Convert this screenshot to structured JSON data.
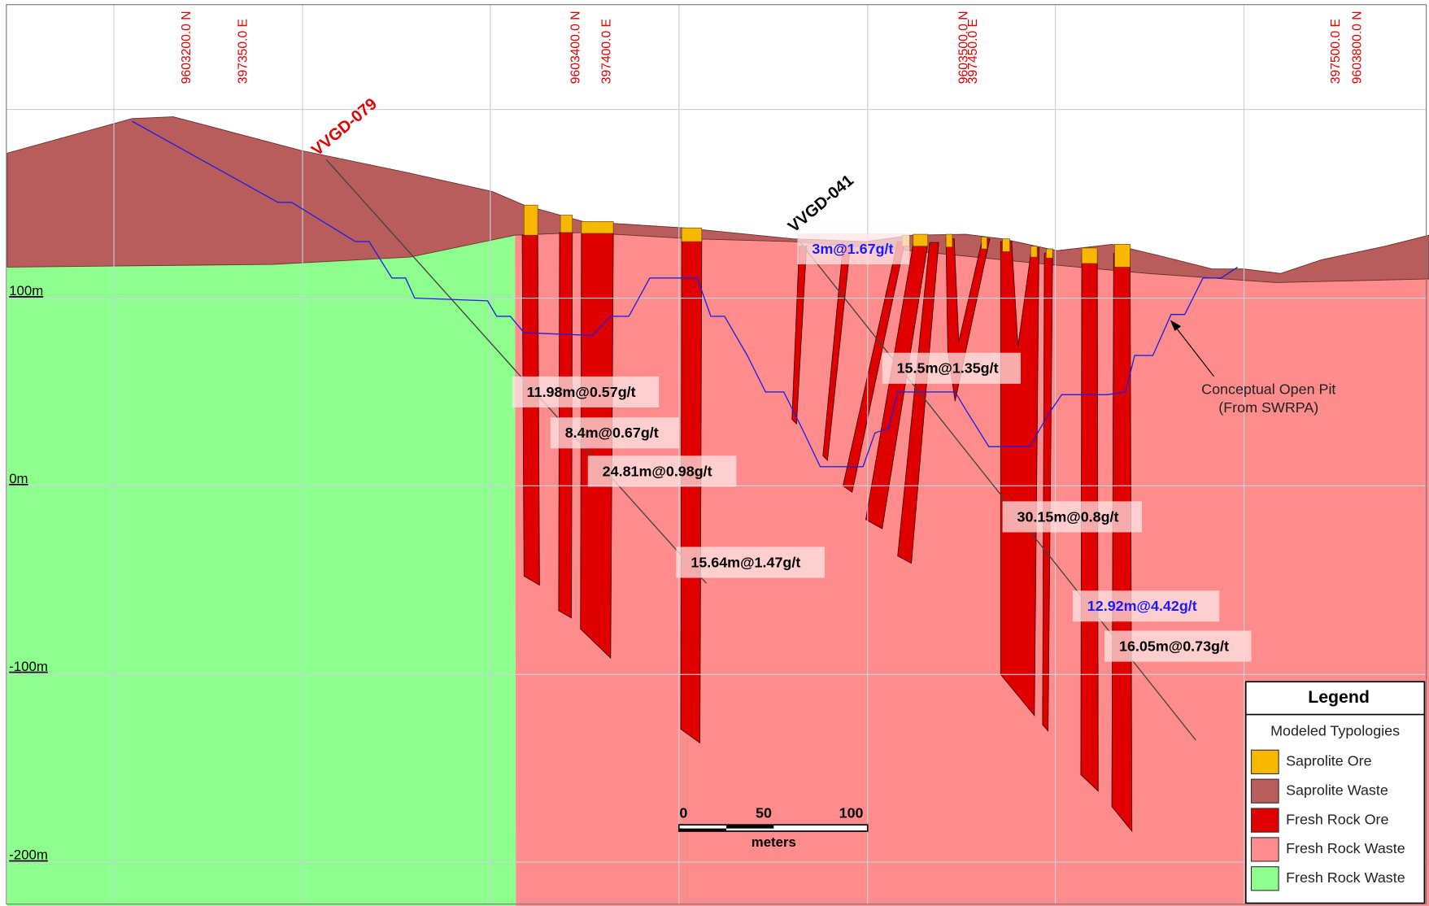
{
  "section_labels": [
    "9603200.0 N",
    "397350.0 E",
    "9603400.0 N",
    "397400.0 E",
    "9603500.0 N",
    "397450.0 E",
    "397500.0 E",
    "9603800.0 N"
  ],
  "drill_holes": [
    {
      "name": "VVGD-079",
      "color": "#e00000"
    },
    {
      "name": "VVGD-041",
      "color": "#000000"
    }
  ],
  "intercepts": [
    {
      "text": "11.98m@0.57g/t",
      "color": "#000000"
    },
    {
      "text": "8.4m@0.67g/t",
      "color": "#000000"
    },
    {
      "text": "24.81m@0.98g/t",
      "color": "#000000"
    },
    {
      "text": "15.64m@1.47g/t",
      "color": "#000000"
    },
    {
      "text": "3m@1.67g/t",
      "color": "#1a1aff"
    },
    {
      "text": "15.5m@1.35g/t",
      "color": "#000000"
    },
    {
      "text": "30.15m@0.8g/t",
      "color": "#000000"
    },
    {
      "text": "12.92m@4.42g/t",
      "color": "#1a1aff"
    },
    {
      "text": "16.05m@0.73g/t",
      "color": "#000000"
    }
  ],
  "elevation_labels": [
    "100m",
    "0m",
    "-100m",
    "-200m"
  ],
  "scale_bar": {
    "ticks": [
      "0",
      "50",
      "100"
    ],
    "unit": "meters"
  },
  "annotation": {
    "lines": [
      "Conceptual Open Pit",
      "(From SWRPA)"
    ]
  },
  "legend": {
    "title": "Legend",
    "subtitle": "Modeled Typologies",
    "items": [
      {
        "label": "Saprolite Ore",
        "color": "#f9b800"
      },
      {
        "label": "Saprolite Waste",
        "color": "#b85c5c"
      },
      {
        "label": "Fresh Rock Ore",
        "color": "#e00000"
      },
      {
        "label": "Fresh Rock Waste",
        "color": "#ff8c8c"
      },
      {
        "label": "Fresh Rock Waste",
        "color": "#8cff8c"
      }
    ]
  }
}
